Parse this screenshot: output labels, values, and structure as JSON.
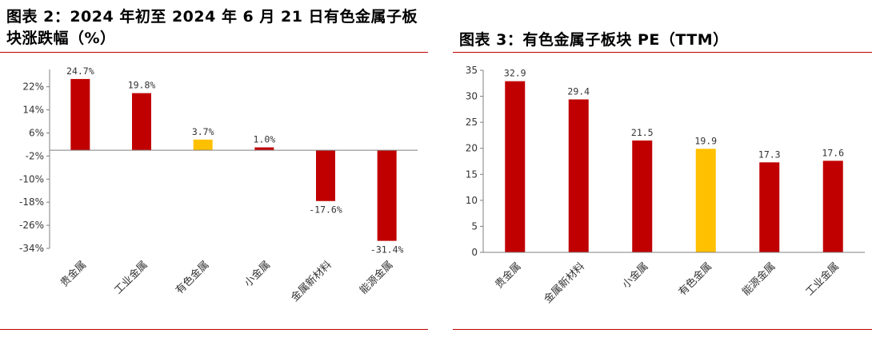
{
  "colors": {
    "primary": "#c00000",
    "highlight": "#ffc000",
    "rule": "#c00000"
  },
  "charts": [
    {
      "id": "left",
      "title": "图表 2：2024 年初至 2024 年 6 月 21 日有色金属子板块涨跌幅（%）",
      "chart_data": {
        "type": "bar",
        "categories": [
          "贵金属",
          "工业金属",
          "有色金属",
          "小金属",
          "金属新材料",
          "能源金属"
        ],
        "values": [
          24.7,
          19.8,
          3.7,
          1.0,
          -17.6,
          -31.4
        ],
        "data_labels": [
          "24.7%",
          "19.8%",
          "3.7%",
          "1.0%",
          "-17.6%",
          "-31.4%"
        ],
        "highlight_category": "有色金属",
        "yticks": [
          22,
          14,
          6,
          -2,
          -10,
          -18,
          -26,
          -34
        ],
        "ytick_labels": [
          "22%",
          "14%",
          "6%",
          "-2%",
          "-10%",
          "-18%",
          "-26%",
          "-34%"
        ],
        "ylim": [
          -34,
          28
        ],
        "baseline": 0,
        "grid": false,
        "legend": false
      }
    },
    {
      "id": "right",
      "title": "图表 3：有色金属子板块 PE（TTM）",
      "chart_data": {
        "type": "bar",
        "categories": [
          "贵金属",
          "金属新材料",
          "小金属",
          "有色金属",
          "能源金属",
          "工业金属"
        ],
        "values": [
          32.9,
          29.4,
          21.5,
          19.9,
          17.3,
          17.6
        ],
        "data_labels": [
          "32.9",
          "29.4",
          "21.5",
          "19.9",
          "17.3",
          "17.6"
        ],
        "highlight_category": "有色金属",
        "yticks": [
          0,
          5,
          10,
          15,
          20,
          25,
          30,
          35
        ],
        "ytick_labels": [
          "0",
          "5",
          "10",
          "15",
          "20",
          "25",
          "30",
          "35"
        ],
        "ylim": [
          0,
          35
        ],
        "baseline": 0,
        "grid": false,
        "legend": false
      }
    }
  ]
}
